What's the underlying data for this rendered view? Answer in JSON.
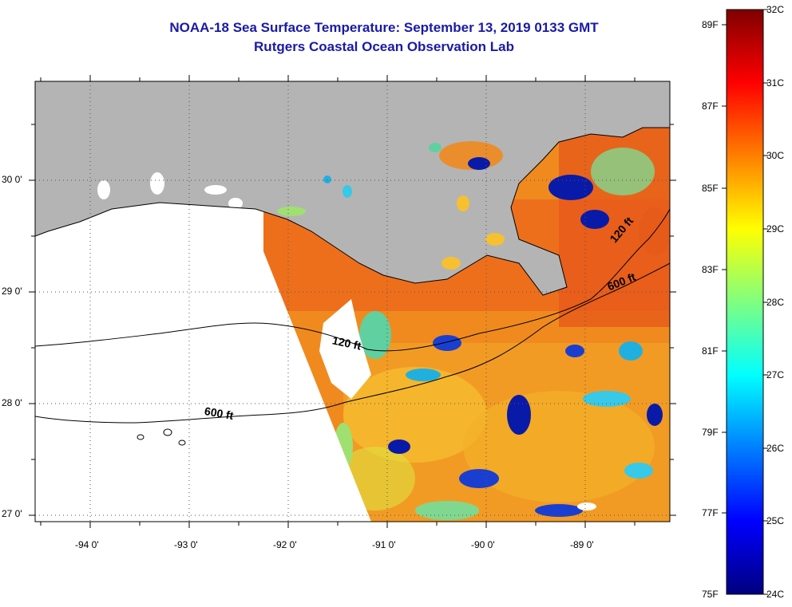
{
  "title": {
    "line1": "NOAA-18 Sea Surface Temperature:  September 13, 2019 0133 GMT",
    "line2": "Rutgers Coastal Ocean Observation Lab"
  },
  "map": {
    "lat_labels": [
      "30 0'",
      "29 0'",
      "28 0'",
      "27 0'"
    ],
    "lon_labels": [
      "-94 0'",
      "-93 0'",
      "-92 0'",
      "-91 0'",
      "-90 0'",
      "-89 0'"
    ],
    "contour_labels": [
      "120 ft",
      "600 ft",
      "120 ft",
      "600 ft"
    ],
    "land_color": "#b4b4b4",
    "nodata_color": "#ffffff"
  },
  "colorbar": {
    "fahrenheit_labels": [
      "89F",
      "87F",
      "85F",
      "83F",
      "81F",
      "79F",
      "77F",
      "75F"
    ],
    "celsius_labels": [
      "32C",
      "31C",
      "30C",
      "29C",
      "28C",
      "27C",
      "26C",
      "25C",
      "24C"
    ],
    "stops": [
      "#00007f",
      "#0000ff",
      "#007fff",
      "#00ffff",
      "#7fff7f",
      "#ffff00",
      "#ff7f00",
      "#ff0000",
      "#7f0000"
    ]
  }
}
